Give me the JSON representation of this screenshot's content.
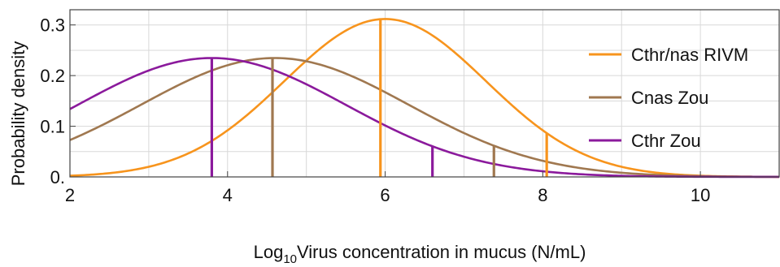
{
  "chart_data": {
    "type": "line",
    "xlabel_prefix": "Log",
    "xlabel_sub": "10",
    "xlabel_rest": "Virus concentration in mucus (N/mL)",
    "ylabel": "Probability density",
    "xlim": [
      2,
      11
    ],
    "ylim": [
      0,
      0.33
    ],
    "x_ticks": [
      {
        "value": 2,
        "label": "2"
      },
      {
        "value": 4,
        "label": "4"
      },
      {
        "value": 6,
        "label": "6"
      },
      {
        "value": 8,
        "label": "8"
      },
      {
        "value": 10,
        "label": "10"
      }
    ],
    "y_ticks": [
      {
        "value": 0,
        "label": "0."
      },
      {
        "value": 0.1,
        "label": "0.1"
      },
      {
        "value": 0.2,
        "label": "0.2"
      },
      {
        "value": 0.3,
        "label": "0.3"
      }
    ],
    "grid": true,
    "legend_position": "right",
    "series": [
      {
        "name": "Cthr/nas RIVM",
        "color": "#f7941d",
        "distribution": "normal",
        "mean": 6.0,
        "sd": 1.28,
        "markers": [
          5.94,
          8.05
        ]
      },
      {
        "name": "Cnas Zou",
        "color": "#a07850",
        "distribution": "normal",
        "mean": 4.6,
        "sd": 1.7,
        "markers": [
          4.57,
          7.38
        ]
      },
      {
        "name": "Cthr Zou",
        "color": "#8b1a9c",
        "distribution": "normal",
        "mean": 3.8,
        "sd": 1.7,
        "markers": [
          3.8,
          6.6
        ]
      }
    ]
  }
}
